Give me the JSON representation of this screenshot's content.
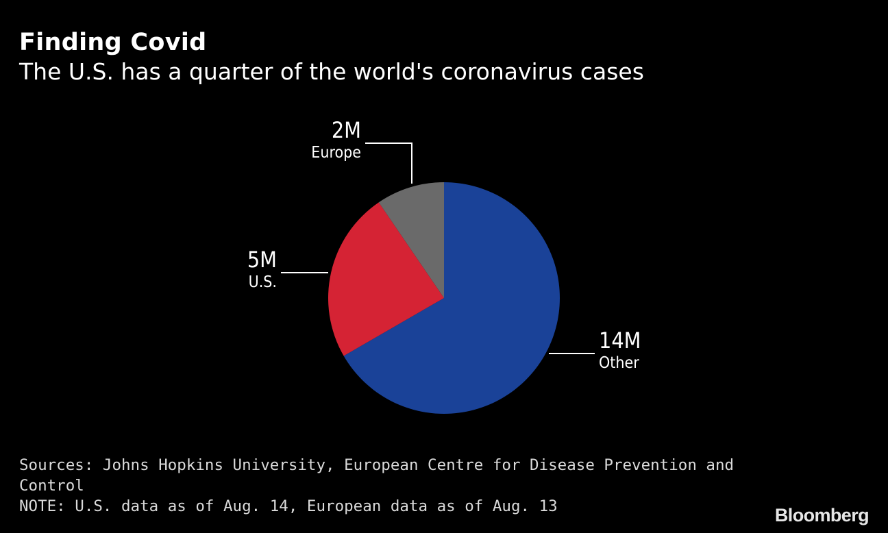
{
  "chart_data": {
    "type": "pie",
    "title": "Finding Covid",
    "subtitle": "The U.S. has a quarter of the world's coronavirus cases",
    "slices": [
      {
        "label": "Other",
        "value": 14,
        "display": "14M",
        "color": "#1a4298"
      },
      {
        "label": "U.S.",
        "value": 5,
        "display": "5M",
        "color": "#d52334"
      },
      {
        "label": "Europe",
        "value": 2,
        "display": "2M",
        "color": "#6a6a6a"
      }
    ],
    "unit": "M",
    "start": "12 o'clock",
    "direction": "clockwise"
  },
  "footer": {
    "source_line1": "Sources: Johns Hopkins University, European Centre for Disease Prevention and",
    "source_line2": "Control",
    "note": "NOTE: U.S. data as of Aug. 14, European data as of Aug. 13"
  },
  "brand": "Bloomberg"
}
